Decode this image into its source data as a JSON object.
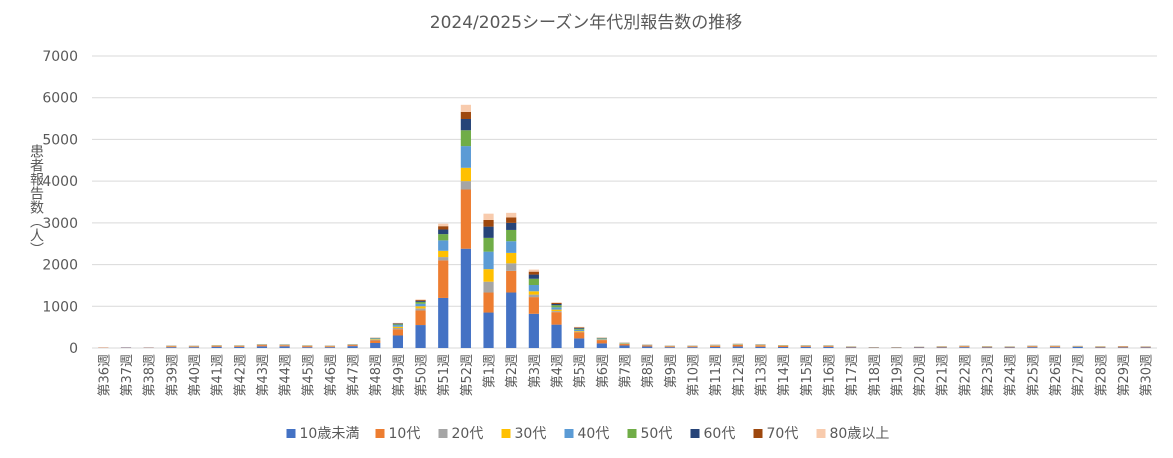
{
  "chart_data": {
    "type": "bar",
    "stacked": true,
    "title": "2024/2025シーズン年代別報告数の推移",
    "ylabel": "患者報告数（人）",
    "xlabel": "",
    "ylim": [
      0,
      7000
    ],
    "yticks": [
      0,
      1000,
      2000,
      3000,
      4000,
      5000,
      6000,
      7000
    ],
    "grid": true,
    "legend_position": "bottom",
    "categories": [
      "第36週",
      "第37週",
      "第38週",
      "第39週",
      "第40週",
      "第41週",
      "第42週",
      "第43週",
      "第44週",
      "第45週",
      "第46週",
      "第47週",
      "第48週",
      "第49週",
      "第50週",
      "第51週",
      "第52週",
      "第1週",
      "第2週",
      "第3週",
      "第4週",
      "第5週",
      "第6週",
      "第7週",
      "第8週",
      "第9週",
      "第10週",
      "第11週",
      "第12週",
      "第13週",
      "第14週",
      "第15週",
      "第16週",
      "第17週",
      "第18週",
      "第19週",
      "第20週",
      "第21週",
      "第22週",
      "第23週",
      "第24週",
      "第25週",
      "第26週",
      "第27週",
      "第28週",
      "第29週",
      "第30週"
    ],
    "series": [
      {
        "name": "10歳未満",
        "color": "#4472c4",
        "values": [
          5,
          10,
          8,
          20,
          20,
          30,
          25,
          40,
          40,
          20,
          20,
          45,
          120,
          300,
          550,
          1200,
          2380,
          850,
          1330,
          820,
          560,
          230,
          110,
          60,
          35,
          20,
          20,
          25,
          35,
          30,
          25,
          25,
          25,
          15,
          8,
          8,
          12,
          15,
          20,
          15,
          15,
          20,
          20,
          30,
          15,
          15,
          15
        ]
      },
      {
        "name": "10代",
        "color": "#ed7d31",
        "values": [
          8,
          6,
          6,
          20,
          15,
          20,
          20,
          30,
          25,
          25,
          20,
          25,
          60,
          150,
          350,
          900,
          1420,
          480,
          520,
          400,
          300,
          150,
          80,
          35,
          25,
          20,
          20,
          30,
          40,
          30,
          25,
          20,
          20,
          12,
          6,
          6,
          10,
          15,
          20,
          15,
          12,
          20,
          20,
          8,
          15,
          20,
          15
        ]
      },
      {
        "name": "20代",
        "color": "#a5a5a5",
        "values": [
          0,
          0,
          0,
          5,
          5,
          5,
          5,
          5,
          5,
          5,
          5,
          5,
          15,
          30,
          50,
          80,
          200,
          260,
          180,
          60,
          25,
          12,
          8,
          6,
          3,
          3,
          3,
          6,
          6,
          6,
          5,
          5,
          5,
          3,
          2,
          2,
          2,
          3,
          4,
          3,
          3,
          3,
          4,
          3,
          3,
          2,
          2
        ]
      },
      {
        "name": "30代",
        "color": "#ffc000",
        "values": [
          0,
          0,
          0,
          5,
          5,
          5,
          5,
          5,
          5,
          5,
          5,
          5,
          15,
          30,
          50,
          150,
          320,
          300,
          250,
          80,
          35,
          15,
          8,
          5,
          3,
          3,
          3,
          5,
          5,
          5,
          5,
          5,
          4,
          3,
          2,
          2,
          2,
          3,
          3,
          3,
          3,
          3,
          3,
          3,
          3,
          2,
          2
        ]
      },
      {
        "name": "40代",
        "color": "#5b9bd5",
        "values": [
          0,
          0,
          0,
          3,
          3,
          3,
          3,
          5,
          5,
          3,
          3,
          5,
          15,
          40,
          60,
          250,
          520,
          420,
          280,
          150,
          55,
          30,
          15,
          8,
          5,
          3,
          3,
          4,
          5,
          5,
          4,
          4,
          3,
          2,
          2,
          2,
          2,
          3,
          3,
          3,
          2,
          3,
          3,
          2,
          2,
          2,
          2
        ]
      },
      {
        "name": "50代",
        "color": "#70ad47",
        "values": [
          0,
          0,
          0,
          2,
          2,
          2,
          2,
          3,
          3,
          2,
          2,
          3,
          10,
          20,
          45,
          150,
          380,
          330,
          270,
          150,
          50,
          25,
          12,
          6,
          4,
          3,
          3,
          3,
          4,
          4,
          3,
          3,
          3,
          2,
          1,
          1,
          1,
          2,
          2,
          2,
          2,
          2,
          2,
          2,
          2,
          2,
          1
        ]
      },
      {
        "name": "60代",
        "color": "#264478",
        "values": [
          0,
          0,
          0,
          2,
          2,
          2,
          2,
          2,
          2,
          2,
          2,
          2,
          5,
          15,
          25,
          110,
          270,
          270,
          170,
          100,
          30,
          20,
          8,
          4,
          3,
          2,
          2,
          2,
          3,
          3,
          2,
          2,
          2,
          1,
          1,
          1,
          1,
          1,
          2,
          2,
          1,
          2,
          2,
          1,
          1,
          1,
          1
        ]
      },
      {
        "name": "70代",
        "color": "#9e480e",
        "values": [
          0,
          0,
          0,
          2,
          2,
          2,
          2,
          2,
          2,
          2,
          2,
          2,
          5,
          10,
          20,
          80,
          170,
          160,
          130,
          70,
          25,
          15,
          6,
          3,
          2,
          2,
          2,
          3,
          3,
          3,
          2,
          2,
          2,
          1,
          1,
          1,
          1,
          1,
          2,
          1,
          1,
          2,
          2,
          1,
          1,
          1,
          1
        ]
      },
      {
        "name": "80歳以上",
        "color": "#f8cbad",
        "values": [
          0,
          0,
          0,
          1,
          1,
          1,
          1,
          1,
          1,
          1,
          1,
          1,
          3,
          8,
          15,
          60,
          170,
          150,
          110,
          50,
          15,
          10,
          5,
          3,
          2,
          1,
          1,
          2,
          2,
          2,
          1,
          1,
          1,
          1,
          1,
          1,
          1,
          1,
          1,
          1,
          1,
          1,
          1,
          1,
          1,
          1,
          1
        ]
      }
    ]
  }
}
